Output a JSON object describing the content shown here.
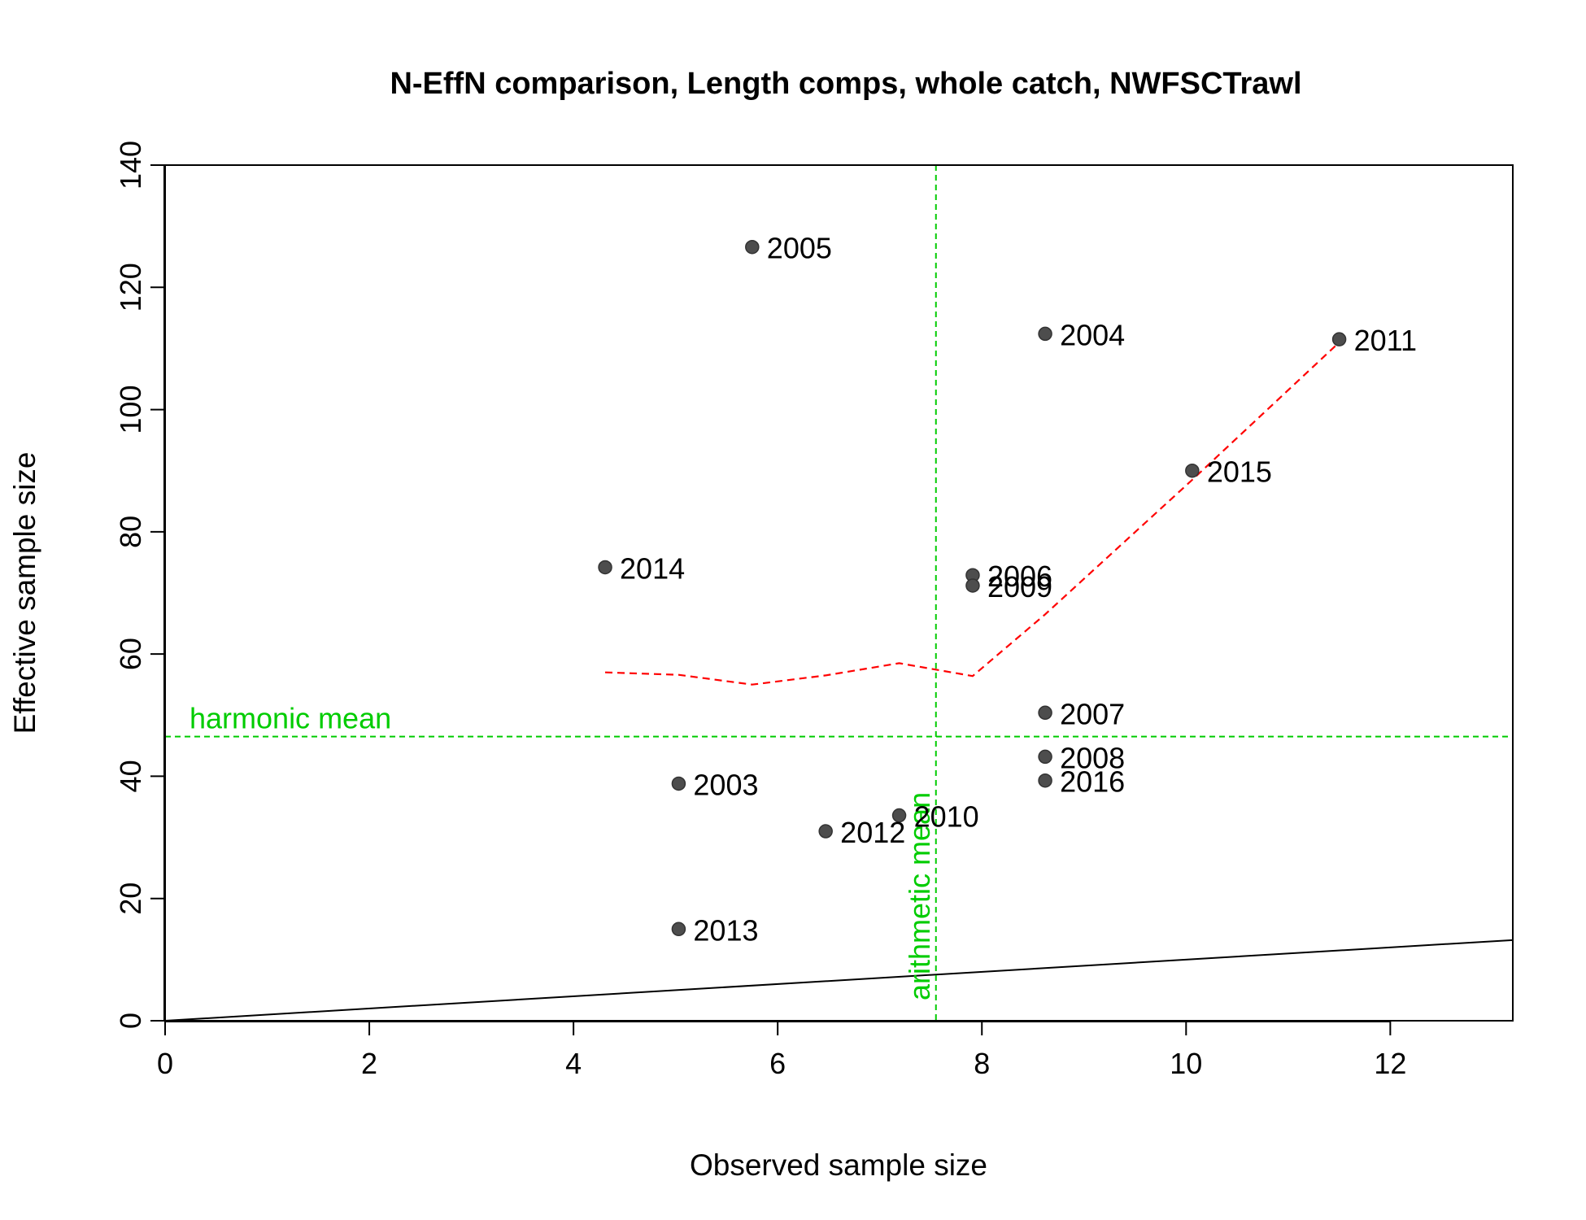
{
  "chart_data": {
    "type": "scatter",
    "title": "N-EffN comparison, Length comps, whole catch, NWFSCTrawl",
    "xlabel": "Observed sample size",
    "ylabel": "Effective sample size",
    "xlim": [
      0,
      13.2
    ],
    "ylim": [
      0,
      140
    ],
    "x_ticks": [
      0,
      2,
      4,
      6,
      8,
      10,
      12
    ],
    "y_ticks": [
      0,
      20,
      40,
      60,
      80,
      100,
      120,
      140
    ],
    "grid": false,
    "points": [
      {
        "label": "2003",
        "x": 5.03,
        "y": 38.8
      },
      {
        "label": "2004",
        "x": 8.62,
        "y": 112.4
      },
      {
        "label": "2005",
        "x": 5.75,
        "y": 126.6
      },
      {
        "label": "2006",
        "x": 7.91,
        "y": 72.9
      },
      {
        "label": "2007",
        "x": 8.62,
        "y": 50.4
      },
      {
        "label": "2008",
        "x": 8.62,
        "y": 43.2
      },
      {
        "label": "2009",
        "x": 7.91,
        "y": 71.2
      },
      {
        "label": "2010",
        "x": 7.19,
        "y": 33.6
      },
      {
        "label": "2011",
        "x": 11.5,
        "y": 111.5
      },
      {
        "label": "2012",
        "x": 6.47,
        "y": 31.0
      },
      {
        "label": "2013",
        "x": 5.03,
        "y": 15.0
      },
      {
        "label": "2014",
        "x": 4.31,
        "y": 74.2
      },
      {
        "label": "2015",
        "x": 10.06,
        "y": 90.0
      },
      {
        "label": "2016",
        "x": 8.62,
        "y": 39.3
      }
    ],
    "smoother": {
      "color": "#ff0000",
      "style": "dashed",
      "points": [
        [
          4.31,
          57.0
        ],
        [
          5.03,
          56.6
        ],
        [
          5.75,
          55.0
        ],
        [
          6.47,
          56.5
        ],
        [
          7.19,
          58.5
        ],
        [
          7.91,
          56.4
        ],
        [
          8.62,
          66.5
        ],
        [
          10.06,
          88.5
        ],
        [
          11.5,
          111.0
        ]
      ]
    },
    "one_to_one_line": {
      "color": "#000000",
      "slope": 1
    },
    "harmonic_mean": {
      "label": "harmonic mean",
      "value": 46.5,
      "color": "#00cc00"
    },
    "arithmetic_mean": {
      "label": "arithmetic mean",
      "value": 7.55,
      "color": "#00cc00"
    },
    "point_color": "#4d4d4d"
  }
}
